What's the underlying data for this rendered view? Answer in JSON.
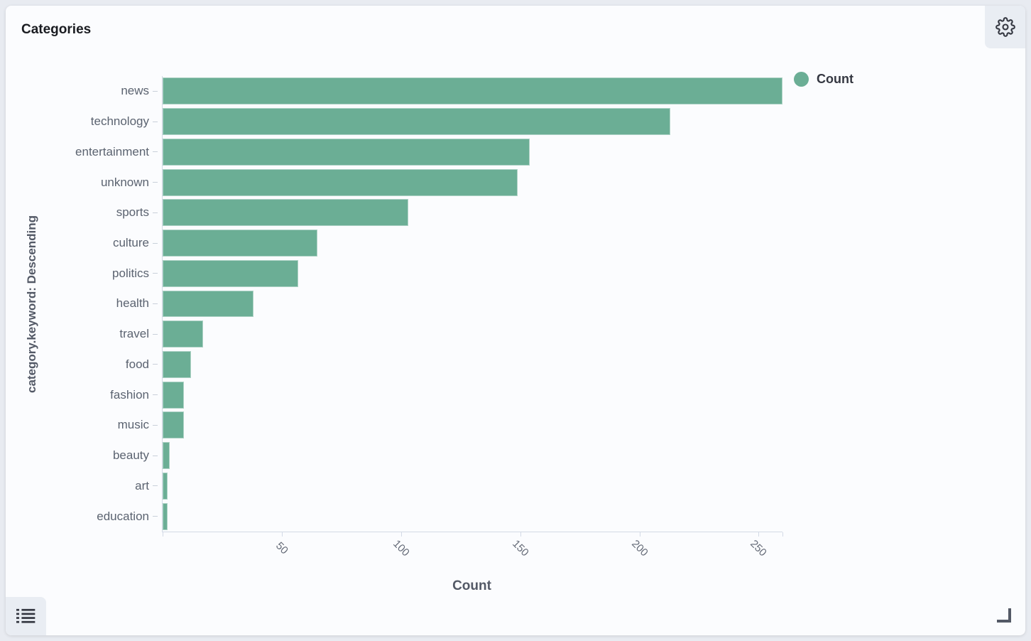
{
  "panel": {
    "title": "Categories",
    "controls": {
      "settings_icon": "gear-icon",
      "legend_toggle_icon": "list-icon",
      "resize_icon": "corner-resize-icon"
    }
  },
  "legend": {
    "items": [
      {
        "label": "Count",
        "color": "#6bae95"
      }
    ]
  },
  "chart_data": {
    "type": "bar",
    "orientation": "horizontal",
    "title": "Categories",
    "categories": [
      "news",
      "technology",
      "entertainment",
      "unknown",
      "sports",
      "culture",
      "politics",
      "health",
      "travel",
      "food",
      "fashion",
      "music",
      "beauty",
      "art",
      "education"
    ],
    "series": [
      {
        "name": "Count",
        "values": [
          260,
          213,
          154,
          149,
          103,
          65,
          57,
          38,
          17,
          12,
          9,
          9,
          3,
          2,
          2
        ]
      }
    ],
    "xlabel": "Count",
    "ylabel": "category.keyword: Descending",
    "xlim": [
      0,
      260
    ],
    "x_ticks": [
      50,
      100,
      150,
      200,
      250
    ],
    "bar_color": "#6bae95",
    "legend_position": "top-right",
    "grid": false
  },
  "colors": {
    "page_background": "#e8ebf1",
    "panel_background": "#fbfcfe",
    "bar": "#6bae95",
    "axis_line": "#d3dae6",
    "axis_text": "#646a77",
    "axis_title_text": "#535966",
    "title_text": "#1a1c21",
    "legend_text": "#343741",
    "control_background": "#e9edf3",
    "icon": "#343741"
  }
}
